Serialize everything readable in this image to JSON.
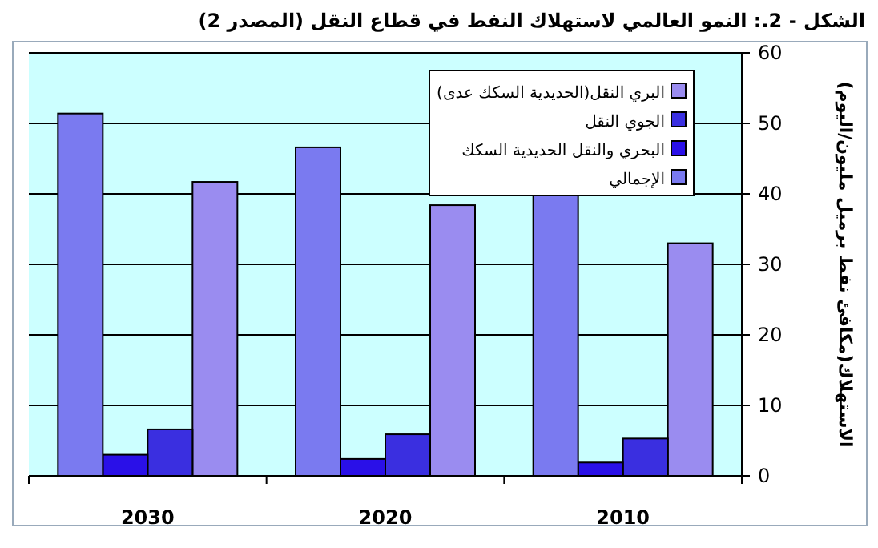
{
  "chart_data": {
    "type": "bar",
    "title": "الشكل - 2.: النمو العالمي لاستهلاك النفط في قطاع النقل (المصدر 2)",
    "ylabel": "الاستهلاك(مكافئ نفط برميل مليون/اليوم)",
    "categories": [
      "2030",
      "2020",
      "2010"
    ],
    "series": [
      {
        "name": "البري النقل(الحديدية السكك عدى)",
        "color": "#9a8cf0",
        "values": [
          41.7,
          38.4,
          33
        ]
      },
      {
        "name": "الجوي النقل",
        "color": "#3a2fe0",
        "values": [
          6.6,
          5.9,
          5.3
        ]
      },
      {
        "name": "البحري والنقل الحديدية السكك",
        "color": "#2a10e8",
        "values": [
          3,
          2.4,
          1.9
        ]
      },
      {
        "name": "الإجمالي",
        "color": "#7a7af0",
        "values": [
          51.4,
          46.6,
          40.2
        ]
      }
    ],
    "ylim": [
      0,
      60
    ],
    "yticks": [
      0,
      10,
      20,
      30,
      40,
      50,
      60
    ],
    "grid": "y",
    "legend": "top right"
  }
}
